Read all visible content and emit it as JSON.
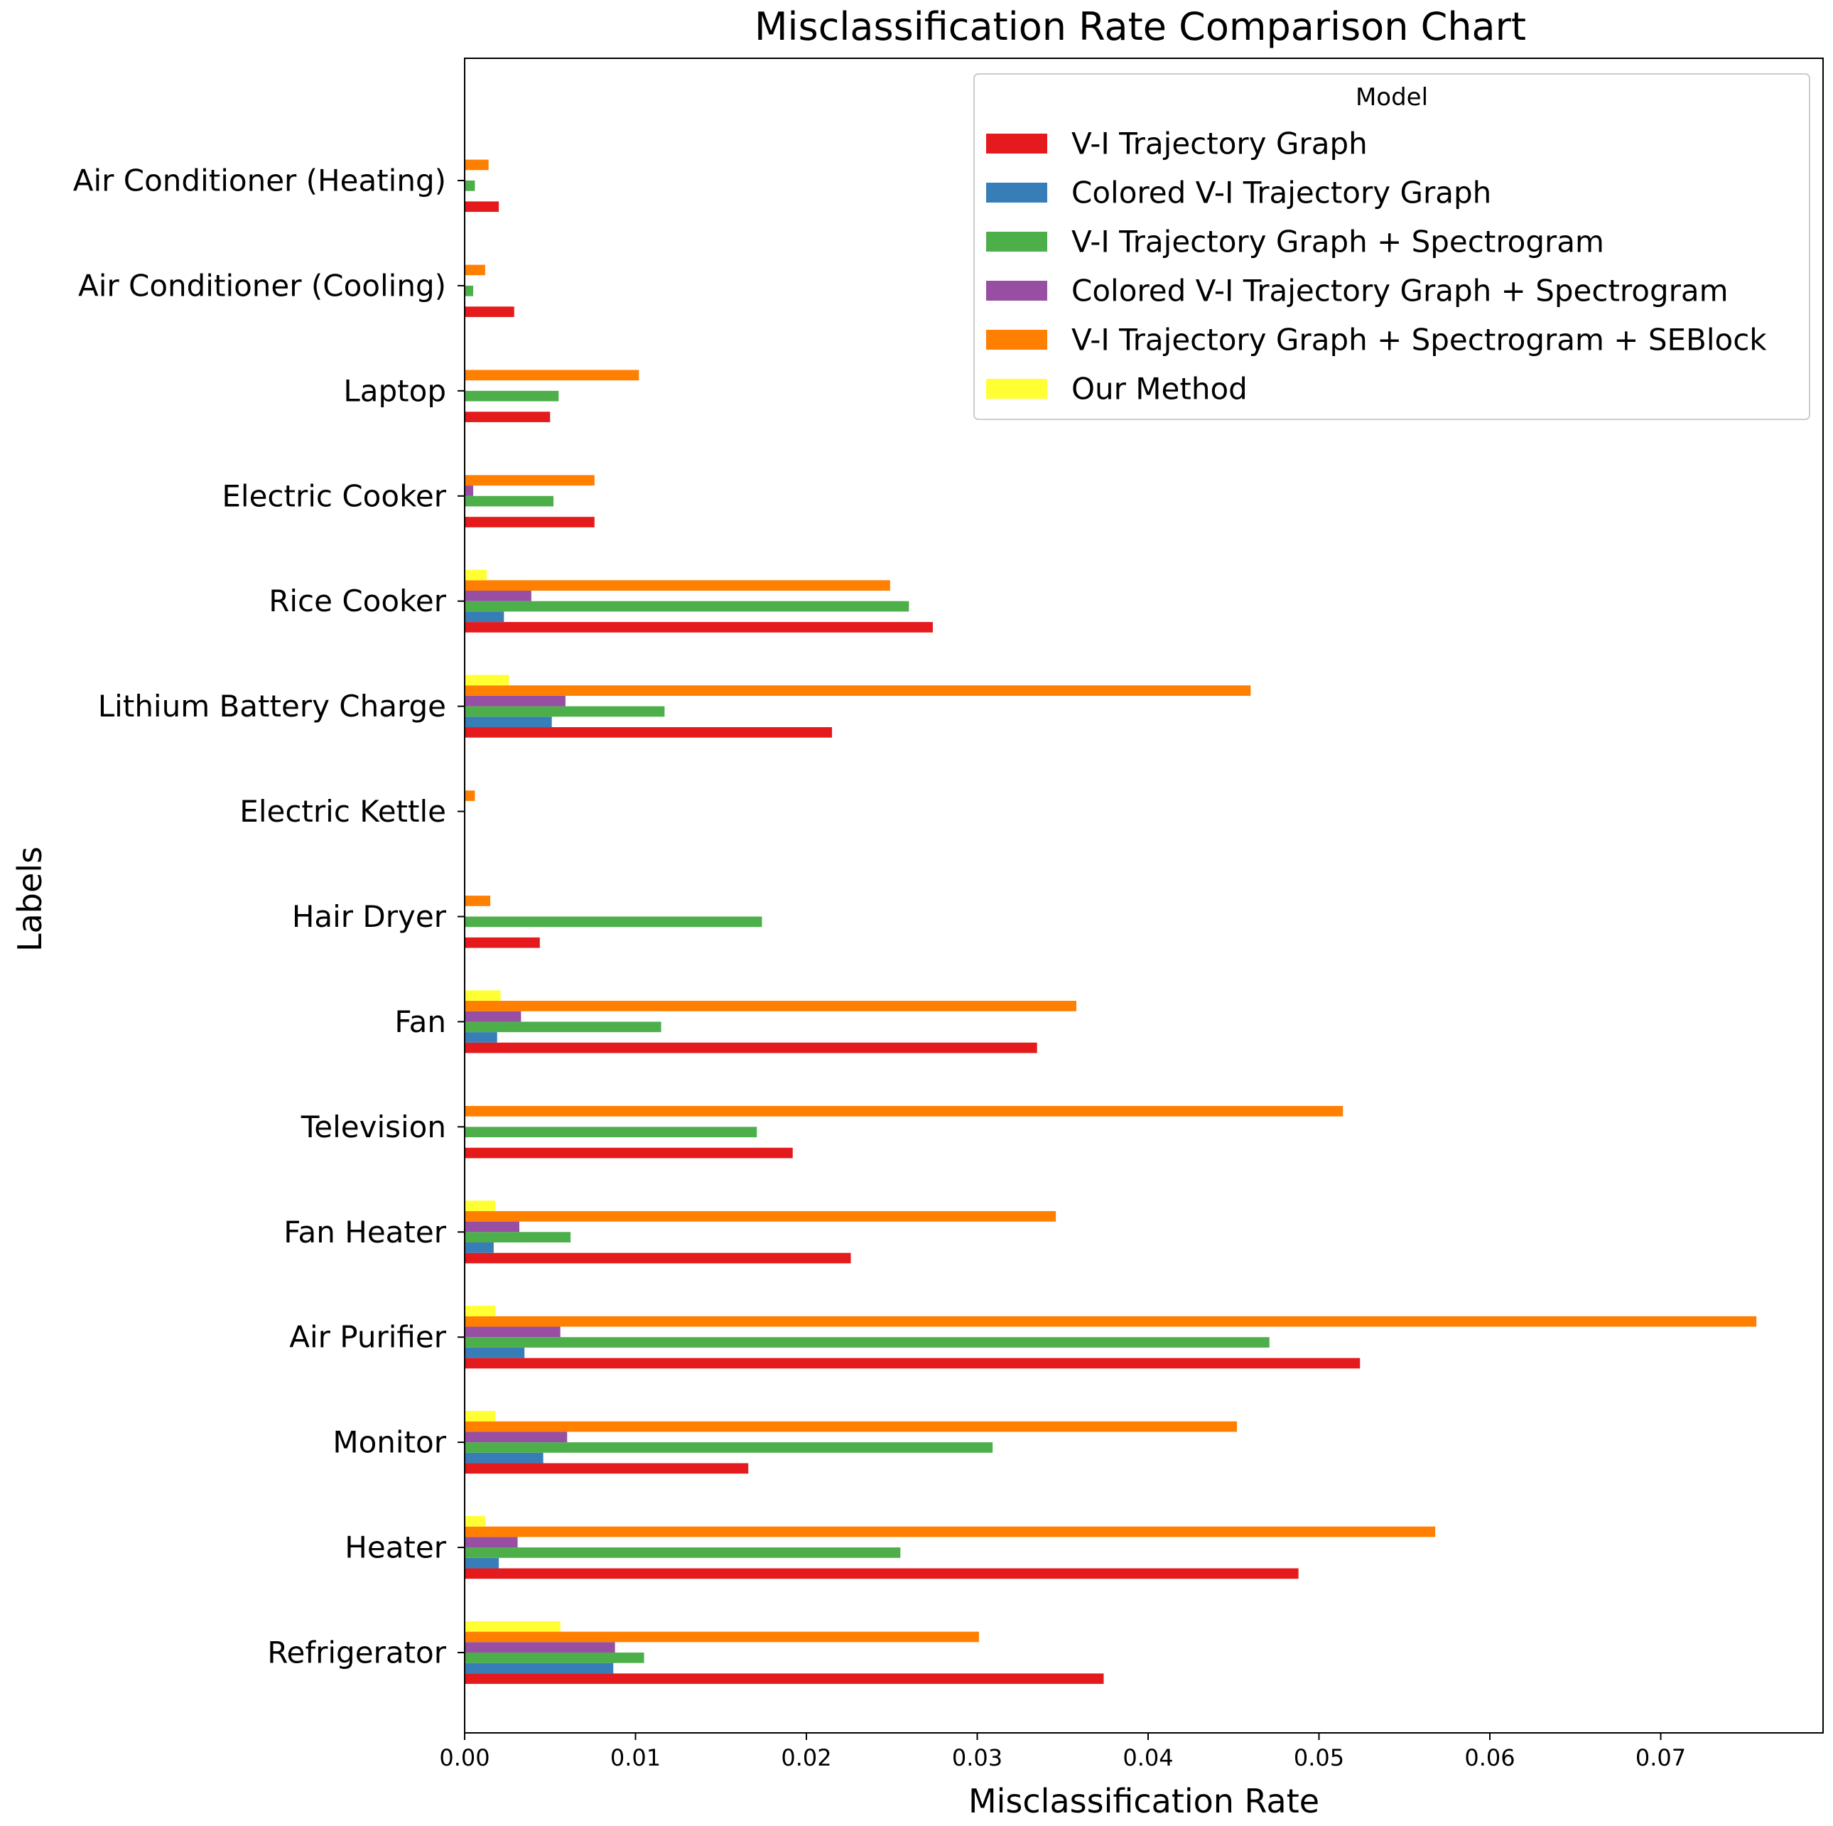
{
  "chart_data": {
    "type": "bar",
    "orientation": "horizontal",
    "title": "Misclassification Rate Comparison Chart",
    "xlabel": "Misclassification Rate",
    "ylabel": "Labels",
    "xlim": [
      0,
      0.0795
    ],
    "xticks": [
      "0.00",
      "0.01",
      "0.02",
      "0.03",
      "0.04",
      "0.05",
      "0.06",
      "0.07"
    ],
    "grid": false,
    "legend_title": "Model",
    "legend_position": "top-right",
    "categories": [
      "Refrigerator",
      "Heater",
      "Monitor",
      "Air Purifier",
      "Fan Heater",
      "Television",
      "Fan",
      "Hair Dryer",
      "Electric Kettle",
      "Lithium Battery Charge",
      "Rice Cooker",
      "Electric Cooker",
      "Laptop",
      "Air Conditioner (Cooling)",
      "Air Conditioner (Heating)"
    ],
    "series": [
      {
        "name": "V-I Trajectory Graph",
        "color": "#e41a1c",
        "values": [
          0.0374,
          0.0488,
          0.0166,
          0.0524,
          0.0226,
          0.0192,
          0.0335,
          0.0044,
          0.0,
          0.0215,
          0.0274,
          0.0076,
          0.005,
          0.0029,
          0.002
        ]
      },
      {
        "name": "Colored V-I Trajectory Graph",
        "color": "#377eb8",
        "values": [
          0.0087,
          0.002,
          0.0046,
          0.0035,
          0.0017,
          0.0,
          0.0019,
          0.0,
          0.0,
          0.0051,
          0.0023,
          0.0,
          0.0,
          0.0,
          0.0
        ]
      },
      {
        "name": "V-I Trajectory Graph + Spectrogram",
        "color": "#4daf4a",
        "values": [
          0.0105,
          0.0255,
          0.0309,
          0.0471,
          0.0062,
          0.0171,
          0.0115,
          0.0174,
          0.0,
          0.0117,
          0.026,
          0.0052,
          0.0055,
          0.0005,
          0.0006
        ]
      },
      {
        "name": "Colored V-I Trajectory Graph + Spectrogram",
        "color": "#984ea3",
        "values": [
          0.0088,
          0.0031,
          0.006,
          0.0056,
          0.0032,
          0.0,
          0.0033,
          0.0,
          0.0,
          0.0059,
          0.0039,
          0.0005,
          0.0,
          0.0,
          0.0
        ]
      },
      {
        "name": "V-I Trajectory Graph + Spectrogram + SEBlock",
        "color": "#ff7f00",
        "values": [
          0.0301,
          0.0568,
          0.0452,
          0.0756,
          0.0346,
          0.0514,
          0.0358,
          0.0015,
          0.0006,
          0.046,
          0.0249,
          0.0076,
          0.0102,
          0.0012,
          0.0014
        ]
      },
      {
        "name": "Our Method",
        "color": "#ffff33",
        "values": [
          0.0056,
          0.0012,
          0.0018,
          0.0018,
          0.0018,
          0.0,
          0.0021,
          0.0,
          0.0,
          0.0026,
          0.0013,
          0.0,
          0.0,
          0.0,
          0.0
        ]
      }
    ]
  }
}
